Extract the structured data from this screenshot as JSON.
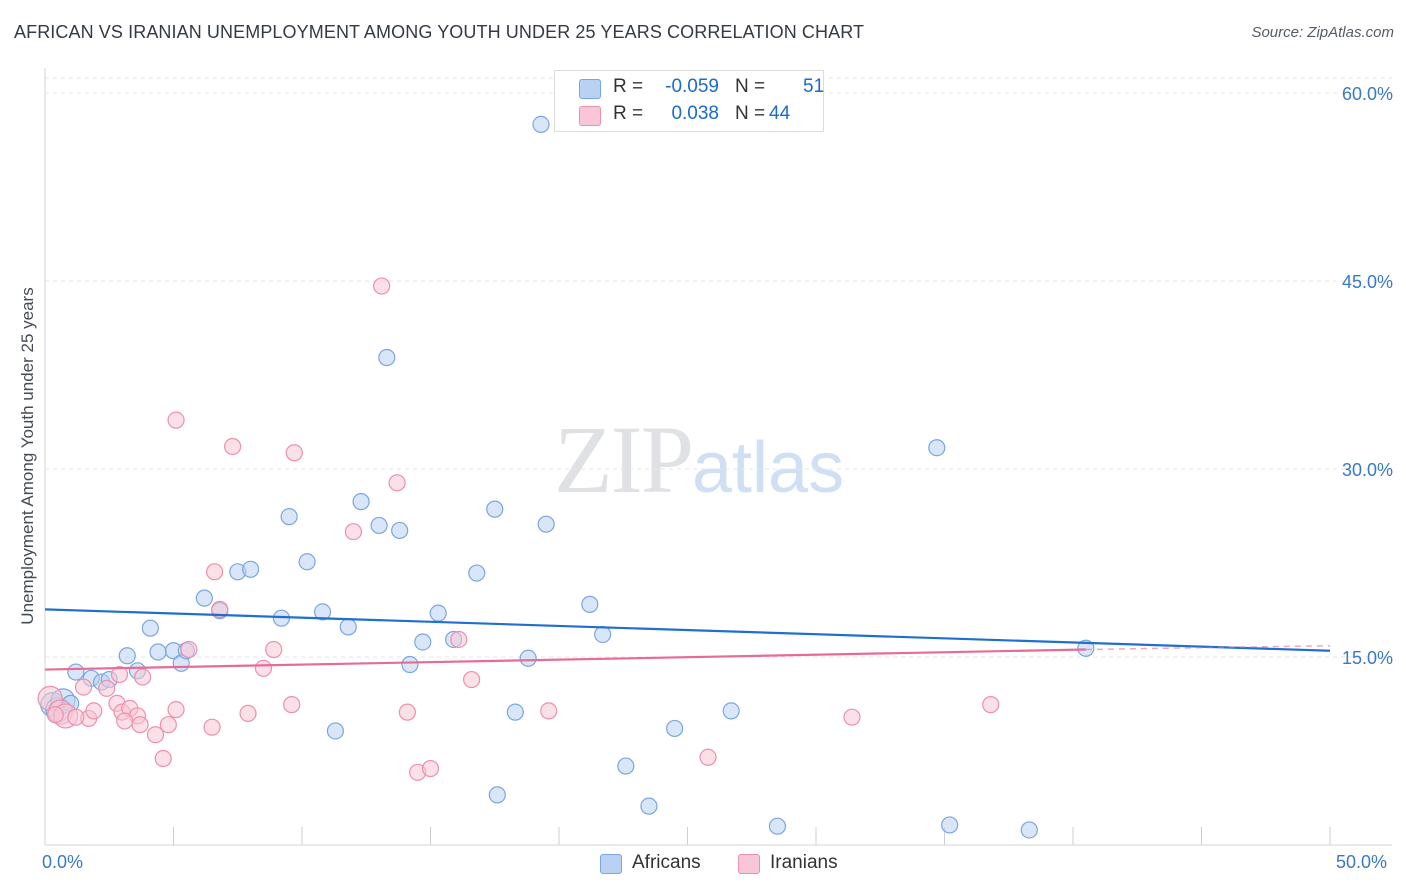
{
  "title": "AFRICAN VS IRANIAN UNEMPLOYMENT AMONG YOUTH UNDER 25 YEARS CORRELATION CHART",
  "source": "Source: ZipAtlas.com",
  "watermark": {
    "zip": "ZIP",
    "atlas": "atlas"
  },
  "colors": {
    "africans_fill": "#b9d2f3",
    "africans_stroke": "#7aa6e0",
    "africans_line": "#1f6fcf",
    "iranians_fill": "#f8c6d6",
    "iranians_stroke": "#ec90ad",
    "iranians_line": "#e86b96",
    "axis_text": "#3a78c8",
    "grid": "#e6e6e6"
  },
  "legend": {
    "rows": [
      {
        "r_label": "R =",
        "r_value": "-0.059",
        "n_label": "N =",
        "n_value": "51"
      },
      {
        "r_label": "R =",
        "r_value": "0.038",
        "n_label": "N =",
        "n_value": "44"
      }
    ],
    "series_labels": [
      "Africans",
      "Iranians"
    ]
  },
  "x_axis": {
    "min_label": "0.0%",
    "max_label": "50.0%"
  },
  "chart_data": {
    "type": "scatter",
    "title": "AFRICAN VS IRANIAN UNEMPLOYMENT AMONG YOUTH UNDER 25 YEARS CORRELATION CHART",
    "xlabel": "",
    "ylabel": "Unemployment Among Youth under 25 years",
    "xlim": [
      0,
      50
    ],
    "ylim": [
      0,
      62
    ],
    "y_ticks": [
      15,
      30,
      45,
      60
    ],
    "y_tick_labels": [
      "15.0%",
      "30.0%",
      "45.0%",
      "60.0%"
    ],
    "grid": true,
    "legend": "top-center",
    "series": [
      {
        "name": "Africans",
        "r": -0.059,
        "n": 51,
        "trend": [
          [
            0,
            18.8
          ],
          [
            50,
            15.5
          ]
        ],
        "points": [
          [
            0.3,
            11.2
          ],
          [
            0.5,
            10.8
          ],
          [
            0.7,
            11.5
          ],
          [
            1.2,
            13.8
          ],
          [
            1.8,
            13.3
          ],
          [
            2.2,
            13.0
          ],
          [
            3.2,
            15.1
          ],
          [
            4.4,
            15.4
          ],
          [
            5.0,
            15.5
          ],
          [
            5.3,
            14.5
          ],
          [
            6.2,
            19.7
          ],
          [
            6.8,
            18.7
          ],
          [
            7.5,
            21.8
          ],
          [
            8.0,
            22.0
          ],
          [
            9.5,
            26.2
          ],
          [
            9.2,
            18.1
          ],
          [
            10.2,
            22.6
          ],
          [
            10.8,
            18.6
          ],
          [
            11.8,
            17.4
          ],
          [
            12.3,
            27.4
          ],
          [
            13.0,
            25.5
          ],
          [
            13.3,
            38.9
          ],
          [
            13.8,
            25.1
          ],
          [
            14.2,
            14.4
          ],
          [
            14.7,
            16.2
          ],
          [
            15.3,
            18.5
          ],
          [
            15.9,
            16.4
          ],
          [
            16.8,
            21.7
          ],
          [
            17.5,
            26.8
          ],
          [
            18.8,
            14.9
          ],
          [
            19.5,
            25.6
          ],
          [
            21.2,
            19.2
          ],
          [
            21.7,
            16.8
          ],
          [
            22.6,
            6.3
          ],
          [
            23.5,
            3.1
          ],
          [
            24.5,
            9.3
          ],
          [
            26.7,
            10.7
          ],
          [
            28.5,
            1.5
          ],
          [
            34.7,
            31.7
          ],
          [
            35.2,
            1.6
          ],
          [
            38.3,
            1.2
          ],
          [
            40.5,
            15.7
          ],
          [
            19.3,
            57.5
          ],
          [
            17.6,
            4.0
          ],
          [
            5.5,
            15.5
          ],
          [
            3.6,
            13.9
          ],
          [
            11.3,
            9.1
          ],
          [
            18.3,
            10.6
          ],
          [
            2.5,
            13.2
          ],
          [
            1.0,
            11.3
          ],
          [
            4.1,
            17.3
          ]
        ]
      },
      {
        "name": "Iranians",
        "r": 0.038,
        "n": 44,
        "trend": [
          [
            0,
            14.0
          ],
          [
            40.5,
            15.6
          ]
        ],
        "trend_dashed": [
          [
            40.5,
            15.6
          ],
          [
            50,
            15.9
          ]
        ],
        "points": [
          [
            0.2,
            11.7
          ],
          [
            0.6,
            10.6
          ],
          [
            0.8,
            10.3
          ],
          [
            1.5,
            12.6
          ],
          [
            1.7,
            10.1
          ],
          [
            1.9,
            10.7
          ],
          [
            2.4,
            12.5
          ],
          [
            2.8,
            11.3
          ],
          [
            3.0,
            10.6
          ],
          [
            3.3,
            10.9
          ],
          [
            3.6,
            10.3
          ],
          [
            3.8,
            13.4
          ],
          [
            4.6,
            6.9
          ],
          [
            5.1,
            10.8
          ],
          [
            5.6,
            15.6
          ],
          [
            6.6,
            21.8
          ],
          [
            6.8,
            18.8
          ],
          [
            7.3,
            31.8
          ],
          [
            7.9,
            10.5
          ],
          [
            8.5,
            14.1
          ],
          [
            8.9,
            15.6
          ],
          [
            9.6,
            11.2
          ],
          [
            9.7,
            31.3
          ],
          [
            12.0,
            25.0
          ],
          [
            13.1,
            44.6
          ],
          [
            13.7,
            28.9
          ],
          [
            14.1,
            10.6
          ],
          [
            14.5,
            5.8
          ],
          [
            15.0,
            6.1
          ],
          [
            16.1,
            16.4
          ],
          [
            16.6,
            13.2
          ],
          [
            19.6,
            10.7
          ],
          [
            25.8,
            7.0
          ],
          [
            31.4,
            10.2
          ],
          [
            36.8,
            11.2
          ],
          [
            5.1,
            33.9
          ],
          [
            4.3,
            8.8
          ],
          [
            3.7,
            9.6
          ],
          [
            4.8,
            9.6
          ],
          [
            6.5,
            9.4
          ],
          [
            1.2,
            10.2
          ],
          [
            2.9,
            13.6
          ],
          [
            3.1,
            9.9
          ],
          [
            0.4,
            10.4
          ]
        ]
      }
    ]
  }
}
